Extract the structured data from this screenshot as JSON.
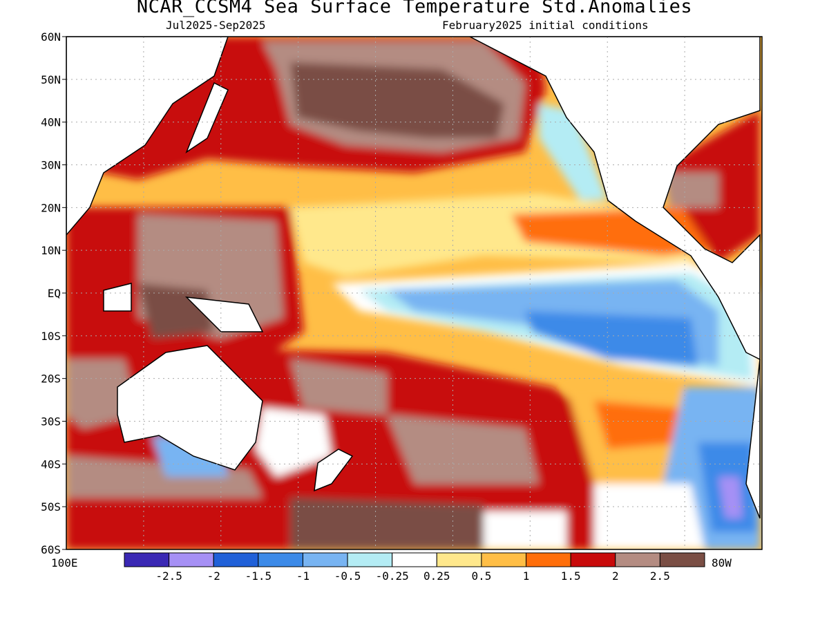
{
  "title": "NCAR_CCSM4 Sea Surface Temperature Std.Anomalies",
  "subtitle_left": "Jul2025-Sep2025",
  "subtitle_right": "February2025 initial conditions",
  "axes": {
    "lat_labels": [
      "60N",
      "50N",
      "40N",
      "30N",
      "20N",
      "10N",
      "EQ",
      "10S",
      "20S",
      "30S",
      "40S",
      "50S",
      "60S"
    ],
    "lon_left": "100E",
    "lon_right": "80W"
  },
  "colorbar": {
    "colors": [
      "#3a28b4",
      "#a690f5",
      "#2060d8",
      "#3c8ae8",
      "#78b4f2",
      "#b4ecf4",
      "#ffffff",
      "#ffe88c",
      "#ffbe46",
      "#ff6e0a",
      "#c80a0a",
      "#b48c82",
      "#7a4e44"
    ],
    "labels": [
      "-2.5",
      "-2",
      "-1.5",
      "-1",
      "-0.5",
      "-0.25",
      "0.25",
      "0.5",
      "1",
      "1.5",
      "2",
      "2.5"
    ]
  },
  "map_colors": {
    "land": "#ffffff",
    "grid": "#aaaaaa"
  }
}
